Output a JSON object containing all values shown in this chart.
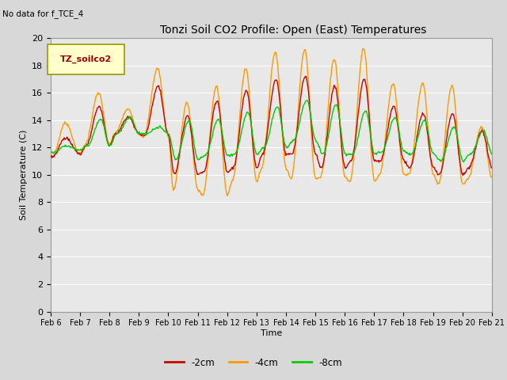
{
  "title": "Tonzi Soil CO2 Profile: Open (East) Temperatures",
  "subtitle": "No data for f_TCE_4",
  "ylabel": "Soil Temperature (C)",
  "xlabel": "Time",
  "legend_label": "TZ_soilco2",
  "ylim": [
    0,
    20
  ],
  "yticks": [
    0,
    2,
    4,
    6,
    8,
    10,
    12,
    14,
    16,
    18,
    20
  ],
  "xtick_labels": [
    "Feb 6",
    "Feb 7",
    "Feb 8",
    "Feb 9",
    "Feb 10",
    "Feb 11",
    "Feb 12",
    "Feb 13",
    "Feb 14",
    "Feb 15",
    "Feb 16",
    "Feb 17",
    "Feb 18",
    "Feb 19",
    "Feb 20",
    "Feb 21"
  ],
  "bg_color": "#e8e8e8",
  "grid_color": "#ffffff",
  "line_2cm_color": "#cc0000",
  "line_4cm_color": "#ff9900",
  "line_8cm_color": "#00cc00",
  "line_width": 1.0,
  "legend_box_color": "#ffffcc",
  "legend_box_edge": "#999900",
  "legend_text_color": "#990000",
  "fig_width": 6.4,
  "fig_height": 4.8,
  "dpi": 100
}
